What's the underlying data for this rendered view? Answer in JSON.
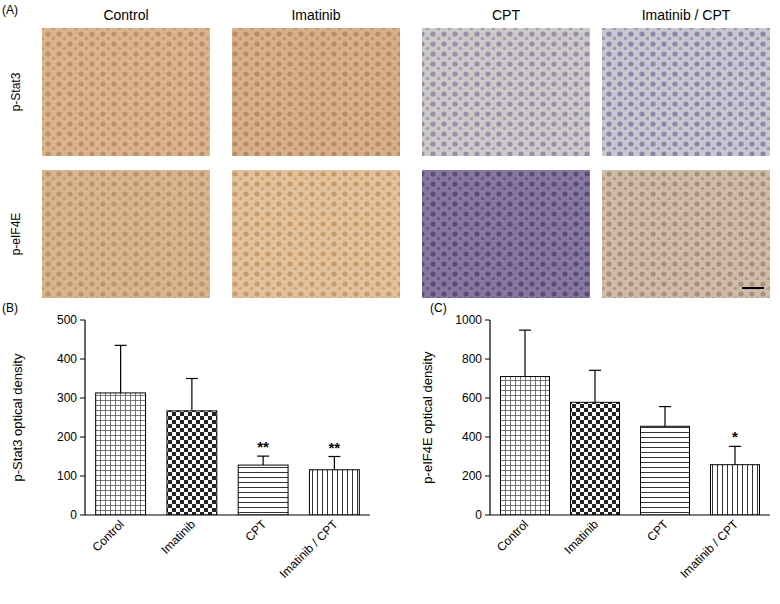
{
  "panel_a": {
    "label": "(A)",
    "columns": [
      "Control",
      "Imatinib",
      "CPT",
      "Imatinib / CPT"
    ],
    "rows": [
      "p-Stat3",
      "p-eIF4E"
    ]
  },
  "chart_data": [
    {
      "panel_label": "(B)",
      "type": "bar",
      "y_label": "p-Stat3 optical density",
      "categories": [
        "Control",
        "Imatinib",
        "CPT",
        "Imatinib / CPT"
      ],
      "values": [
        313,
        267,
        128,
        116
      ],
      "errors": [
        122,
        83,
        23,
        34
      ],
      "color": "#000000",
      "ylim": [
        0,
        500
      ],
      "yticks": [
        0,
        100,
        200,
        300,
        400,
        500
      ],
      "grid": false,
      "annotations": [
        {
          "text": "**",
          "category": "CPT"
        },
        {
          "text": "**",
          "category": "Imatinib / CPT"
        }
      ]
    },
    {
      "panel_label": "(C)",
      "type": "bar",
      "y_label": "p-eIF4E optical density",
      "categories": [
        "Control",
        "Imatinib",
        "CPT",
        "Imatinib / CPT"
      ],
      "values": [
        710,
        578,
        455,
        258
      ],
      "errors": [
        238,
        164,
        101,
        94
      ],
      "color": "#000000",
      "ylim": [
        0,
        1000
      ],
      "yticks": [
        0,
        200,
        400,
        600,
        800,
        1000
      ],
      "grid": false,
      "annotations": [
        {
          "text": "*",
          "category": "Imatinib / CPT"
        }
      ]
    }
  ]
}
